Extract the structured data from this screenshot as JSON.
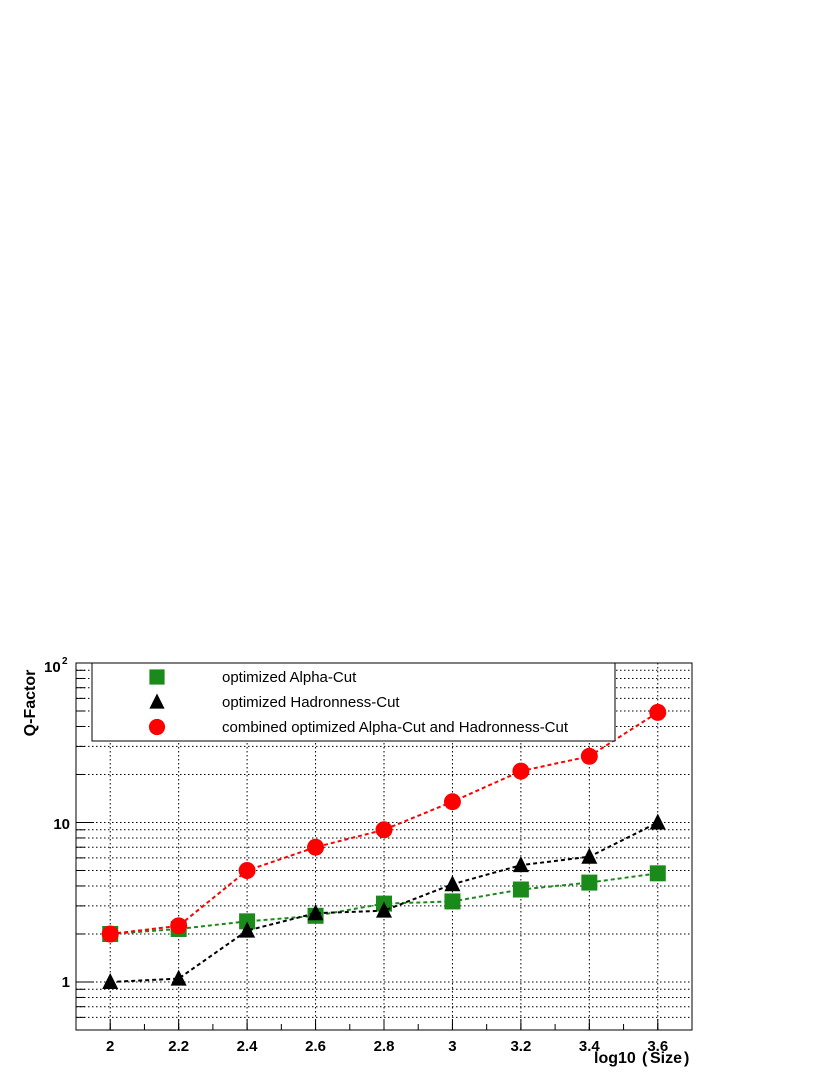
{
  "chart_data": {
    "type": "scatter",
    "xlabel": "log10",
    "xlabel_paren": "Size",
    "ylabel": "Q-Factor",
    "xlim": [
      1.9,
      3.7
    ],
    "ylim": [
      0.5,
      100
    ],
    "y_scale": "log",
    "grid": true,
    "legend_position": "top-left",
    "x_ticks": [
      "2",
      "2.2",
      "2.4",
      "2.6",
      "2.8",
      "3",
      "3.2",
      "3.4",
      "3.6"
    ],
    "y_tick_labels": {
      "one": "1",
      "ten": "10",
      "hundred_base": "10",
      "hundred_exp": "2"
    },
    "x": [
      2.0,
      2.2,
      2.4,
      2.6,
      2.8,
      3.0,
      3.2,
      3.4,
      3.6
    ],
    "series": [
      {
        "name": "optimized Alpha-Cut",
        "marker": "square",
        "color": "#1a8a1a",
        "values": [
          2.0,
          2.15,
          2.4,
          2.6,
          3.1,
          3.2,
          3.8,
          4.2,
          4.8
        ]
      },
      {
        "name": "optimized Hadronness-Cut",
        "marker": "triangle",
        "color": "#000000",
        "values": [
          1.0,
          1.05,
          2.1,
          2.7,
          2.8,
          4.1,
          5.4,
          6.1,
          10.0
        ]
      },
      {
        "name": "combined optimized Alpha-Cut and Hadronness-Cut",
        "marker": "circle",
        "color": "#ff0000",
        "values": [
          2.0,
          2.25,
          5.0,
          7.0,
          9.0,
          13.5,
          21.0,
          26.0,
          49.0
        ]
      }
    ]
  }
}
